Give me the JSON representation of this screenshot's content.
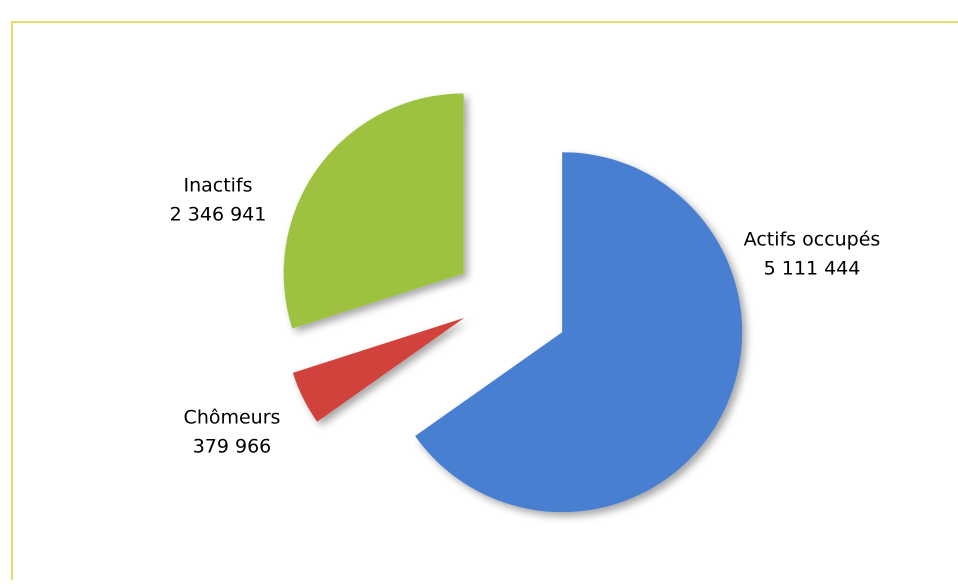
{
  "chart_data": {
    "type": "pie",
    "categories": [
      "Actifs occupés",
      "Chômeurs",
      "Inactifs"
    ],
    "values": [
      5111444,
      379966,
      2346941
    ],
    "value_labels": [
      "5 111 444",
      "379 966",
      "2 346 941"
    ],
    "colors": [
      "#4a7fd0",
      "#d0423a",
      "#9cc240"
    ]
  }
}
